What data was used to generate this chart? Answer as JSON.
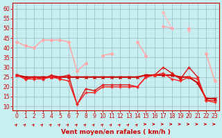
{
  "bg_color": "#c8eef0",
  "grid_color": "#99bbcc",
  "x_label": "Vent moyen/en rafales ( km/h )",
  "ylim": [
    8,
    63
  ],
  "xlim": [
    -0.5,
    23.5
  ],
  "yticks": [
    10,
    15,
    20,
    25,
    30,
    35,
    40,
    45,
    50,
    55,
    60
  ],
  "xticks": [
    0,
    1,
    2,
    3,
    4,
    5,
    6,
    7,
    8,
    9,
    10,
    11,
    12,
    13,
    14,
    15,
    16,
    17,
    18,
    19,
    20,
    21,
    22,
    23
  ],
  "series": [
    {
      "color": "#ffaaaa",
      "lw": 1.0,
      "marker": "D",
      "ms": 2.0,
      "zorder": 3,
      "x": [
        0,
        1,
        2,
        3,
        4,
        5,
        6,
        7,
        8,
        9,
        10,
        11,
        12,
        13,
        14,
        15,
        16,
        17,
        18,
        19,
        20,
        21,
        22,
        23
      ],
      "y": [
        43,
        41,
        40,
        44,
        44,
        44,
        43,
        28,
        32,
        null,
        36,
        37,
        null,
        null,
        43,
        36,
        null,
        51,
        50,
        null,
        50,
        null,
        37,
        23
      ]
    },
    {
      "color": "#ffbbbb",
      "lw": 1.0,
      "marker": "D",
      "ms": 2.0,
      "zorder": 2,
      "x": [
        0,
        1,
        2,
        3,
        4,
        5,
        6,
        7,
        8,
        9,
        10,
        11,
        12,
        13,
        14,
        15,
        16,
        17,
        18,
        19,
        20,
        21,
        22,
        23
      ],
      "y": [
        43,
        41,
        40,
        44,
        44,
        44,
        43,
        28,
        32,
        null,
        36,
        37,
        null,
        null,
        43,
        36,
        null,
        58,
        50,
        null,
        49,
        null,
        37,
        23
      ]
    },
    {
      "color": "#cc0000",
      "lw": 1.5,
      "marker": "x",
      "ms": 3.0,
      "zorder": 4,
      "x": [
        0,
        1,
        2,
        3,
        4,
        5,
        6,
        7,
        8,
        9,
        10,
        11,
        12,
        13,
        14,
        15,
        16,
        17,
        18,
        19,
        20,
        21,
        22,
        23
      ],
      "y": [
        26,
        25,
        25,
        25,
        25,
        25,
        25,
        25,
        25,
        25,
        25,
        25,
        25,
        25,
        25,
        26,
        26,
        26,
        26,
        25,
        25,
        22,
        14,
        14
      ]
    },
    {
      "color": "#dd1111",
      "lw": 1.0,
      "marker": "+",
      "ms": 3.5,
      "zorder": 5,
      "x": [
        0,
        1,
        2,
        3,
        4,
        5,
        6,
        7,
        8,
        9,
        10,
        11,
        12,
        13,
        14,
        15,
        16,
        17,
        18,
        19,
        20,
        21,
        22,
        23
      ],
      "y": [
        26,
        24,
        25,
        24,
        26,
        25,
        26,
        11,
        19,
        18,
        21,
        21,
        21,
        21,
        20,
        25,
        26,
        30,
        27,
        24,
        30,
        25,
        13,
        13
      ]
    },
    {
      "color": "#ff2222",
      "lw": 1.0,
      "marker": "+",
      "ms": 3.5,
      "zorder": 5,
      "x": [
        0,
        1,
        2,
        3,
        4,
        5,
        6,
        7,
        8,
        9,
        10,
        11,
        12,
        13,
        14,
        15,
        16,
        17,
        18,
        19,
        20,
        21,
        22,
        23
      ],
      "y": [
        26,
        24,
        24,
        24,
        25,
        24,
        23,
        11,
        17,
        17,
        20,
        20,
        20,
        20,
        20,
        25,
        26,
        27,
        24,
        23,
        25,
        24,
        13,
        12
      ]
    }
  ],
  "arrow_angles_deg": [
    45,
    45,
    45,
    45,
    45,
    45,
    45,
    45,
    45,
    45,
    45,
    45,
    45,
    45,
    45,
    0,
    0,
    0,
    0,
    0,
    0,
    0,
    0,
    0
  ],
  "tick_color": "#cc0000",
  "tick_fontsize": 5.5,
  "label_fontsize": 6.5,
  "spine_color": "#cc0000"
}
